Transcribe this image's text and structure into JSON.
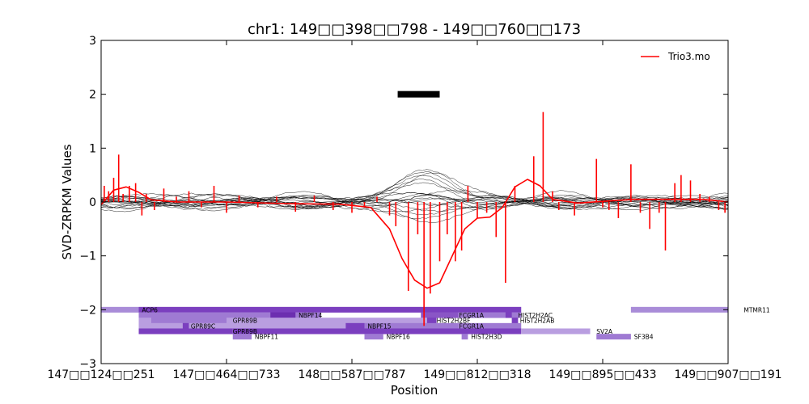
{
  "chart_data": {
    "type": "line",
    "title": "chr1: 149□□398□□798 - 149□□760□□173",
    "xlabel": "Position",
    "ylabel": "SVD-ZRPKM Values",
    "ylim": [
      -3,
      3
    ],
    "yticks": [
      3,
      2,
      1,
      0,
      -1,
      -2,
      -3
    ],
    "ytick_labels": [
      "3",
      "2",
      "1",
      "0",
      "−1",
      "−2",
      "−3"
    ],
    "xtick_labels": [
      "147□□124□□251",
      "147□□464□□733",
      "148□□587□□787",
      "149□□812□□318",
      "149□□895□□433",
      "149□□907□□191"
    ],
    "xtick_positions": [
      0,
      0.2,
      0.4,
      0.6,
      0.8,
      1.0
    ],
    "legend": {
      "entries": [
        "Trio3.mo"
      ],
      "placement": "top-right",
      "color": "#ff0000"
    },
    "colors": {
      "highlight": "#ff0000",
      "background_series": "#000000",
      "gene": "#7b3fbf"
    },
    "marker_bar": {
      "x": [
        0.473,
        0.54
      ],
      "y": 2.0
    },
    "highlight_series": {
      "name": "Trio3.mo",
      "smooth": [
        [
          0.0,
          -0.05
        ],
        [
          0.02,
          0.22
        ],
        [
          0.04,
          0.28
        ],
        [
          0.06,
          0.18
        ],
        [
          0.08,
          0.04
        ],
        [
          0.12,
          0.0
        ],
        [
          0.2,
          0.0
        ],
        [
          0.3,
          -0.03
        ],
        [
          0.38,
          -0.04
        ],
        [
          0.43,
          -0.1
        ],
        [
          0.46,
          -0.5
        ],
        [
          0.48,
          -1.05
        ],
        [
          0.5,
          -1.45
        ],
        [
          0.52,
          -1.6
        ],
        [
          0.54,
          -1.5
        ],
        [
          0.56,
          -1.0
        ],
        [
          0.58,
          -0.5
        ],
        [
          0.6,
          -0.3
        ],
        [
          0.62,
          -0.28
        ],
        [
          0.64,
          -0.1
        ],
        [
          0.66,
          0.28
        ],
        [
          0.68,
          0.42
        ],
        [
          0.7,
          0.3
        ],
        [
          0.72,
          0.05
        ],
        [
          0.76,
          -0.02
        ],
        [
          0.85,
          0.05
        ],
        [
          0.92,
          0.05
        ],
        [
          0.96,
          0.05
        ],
        [
          1.0,
          0.0
        ]
      ],
      "stems": [
        [
          0.005,
          0.3
        ],
        [
          0.012,
          0.2
        ],
        [
          0.02,
          0.45
        ],
        [
          0.028,
          0.88
        ],
        [
          0.035,
          0.15
        ],
        [
          0.045,
          0.3
        ],
        [
          0.055,
          0.35
        ],
        [
          0.065,
          -0.25
        ],
        [
          0.072,
          0.15
        ],
        [
          0.085,
          -0.15
        ],
        [
          0.1,
          0.25
        ],
        [
          0.12,
          0.1
        ],
        [
          0.14,
          0.2
        ],
        [
          0.16,
          -0.1
        ],
        [
          0.18,
          0.3
        ],
        [
          0.2,
          -0.2
        ],
        [
          0.22,
          0.12
        ],
        [
          0.25,
          -0.1
        ],
        [
          0.28,
          0.1
        ],
        [
          0.31,
          -0.18
        ],
        [
          0.34,
          0.12
        ],
        [
          0.37,
          -0.15
        ],
        [
          0.4,
          -0.2
        ],
        [
          0.42,
          -0.1
        ],
        [
          0.44,
          0.1
        ],
        [
          0.46,
          -0.25
        ],
        [
          0.47,
          -0.45
        ],
        [
          0.49,
          -1.65
        ],
        [
          0.505,
          -0.6
        ],
        [
          0.515,
          -2.3
        ],
        [
          0.525,
          -1.7
        ],
        [
          0.54,
          -1.1
        ],
        [
          0.552,
          -0.6
        ],
        [
          0.565,
          -1.1
        ],
        [
          0.575,
          -0.9
        ],
        [
          0.585,
          0.3
        ],
        [
          0.6,
          -0.3
        ],
        [
          0.615,
          -0.2
        ],
        [
          0.63,
          -0.65
        ],
        [
          0.645,
          -1.5
        ],
        [
          0.66,
          0.3
        ],
        [
          0.69,
          0.85
        ],
        [
          0.705,
          1.67
        ],
        [
          0.72,
          0.2
        ],
        [
          0.73,
          -0.15
        ],
        [
          0.755,
          -0.25
        ],
        [
          0.79,
          0.8
        ],
        [
          0.8,
          -0.1
        ],
        [
          0.81,
          -0.15
        ],
        [
          0.825,
          -0.3
        ],
        [
          0.845,
          0.7
        ],
        [
          0.86,
          -0.2
        ],
        [
          0.875,
          -0.5
        ],
        [
          0.89,
          -0.2
        ],
        [
          0.9,
          -0.9
        ],
        [
          0.915,
          0.35
        ],
        [
          0.925,
          0.5
        ],
        [
          0.94,
          0.4
        ],
        [
          0.955,
          0.15
        ],
        [
          0.97,
          0.1
        ],
        [
          0.985,
          -0.15
        ],
        [
          0.995,
          -0.2
        ]
      ]
    },
    "background_series_count": 20,
    "genes": [
      {
        "name": "ACP6",
        "x": [
          -0.05,
          0.06
        ],
        "y": -2.0,
        "lx": 0.065,
        "color": "#a98cd8"
      },
      {
        "name": "",
        "x": [
          0.06,
          0.67
        ],
        "y": -2.0,
        "lx": null,
        "color": "#7b3fbf"
      },
      {
        "name": "",
        "x": [
          0.06,
          0.35
        ],
        "y": -2.1,
        "lx": null,
        "color": "#9f7ad3"
      },
      {
        "name": "NBPF14",
        "x": [
          0.27,
          0.31
        ],
        "y": -2.1,
        "lx": 0.315,
        "color": "#6c2fb0"
      },
      {
        "name": "",
        "x": [
          0.51,
          0.57
        ],
        "y": -2.1,
        "lx": null,
        "color": "#8a55c6"
      },
      {
        "name": "FCGR1A",
        "x": [
          0.57,
          0.67
        ],
        "y": -2.1,
        "lx": 0.571,
        "color": "#9f7ad3"
      },
      {
        "name": "HIST2H2AC",
        "x": [
          0.645,
          0.655
        ],
        "y": -2.1,
        "lx": 0.665,
        "color": "#7b3fbf"
      },
      {
        "name": "",
        "x": [
          0.06,
          0.08
        ],
        "y": -2.2,
        "lx": null,
        "color": "#b99ee0"
      },
      {
        "name": "GPR89B",
        "x": [
          0.08,
          0.2
        ],
        "y": -2.2,
        "lx": 0.21,
        "color": "#9f7ad3"
      },
      {
        "name": "",
        "x": [
          0.2,
          0.52
        ],
        "y": -2.2,
        "lx": null,
        "color": "#b99ee0"
      },
      {
        "name": "HIST2H2BF",
        "x": [
          0.52,
          0.535
        ],
        "y": -2.2,
        "lx": 0.535,
        "color": "#7b3fbf"
      },
      {
        "name": "HIST2H2AB",
        "x": [
          0.655,
          0.665
        ],
        "y": -2.2,
        "lx": 0.668,
        "color": "#7b3fbf"
      },
      {
        "name": "",
        "x": [
          0.06,
          0.13
        ],
        "y": -2.3,
        "lx": null,
        "color": "#b99ee0"
      },
      {
        "name": "GPR89C",
        "x": [
          0.13,
          0.14
        ],
        "y": -2.3,
        "lx": 0.143,
        "color": "#7b3fbf"
      },
      {
        "name": "",
        "x": [
          0.14,
          0.39
        ],
        "y": -2.3,
        "lx": null,
        "color": "#b99ee0"
      },
      {
        "name": "NBPF15",
        "x": [
          0.39,
          0.42
        ],
        "y": -2.3,
        "lx": 0.425,
        "color": "#7b3fbf"
      },
      {
        "name": "",
        "x": [
          0.42,
          0.57
        ],
        "y": -2.3,
        "lx": null,
        "color": "#9f7ad3"
      },
      {
        "name": "FCGR1A",
        "x": [
          0.57,
          0.67
        ],
        "y": -2.3,
        "lx": 0.571,
        "color": "#9f7ad3"
      },
      {
        "name": "",
        "x": [
          0.06,
          0.2
        ],
        "y": -2.4,
        "lx": null,
        "color": "#7b3fbf"
      },
      {
        "name": "GPR89B",
        "x": [
          0.2,
          0.21
        ],
        "y": -2.4,
        "lx": 0.21,
        "color": "#7b3fbf"
      },
      {
        "name": "",
        "x": [
          0.21,
          0.67
        ],
        "y": -2.4,
        "lx": null,
        "color": "#7b3fbf"
      },
      {
        "name": "SV2A",
        "x": [
          0.67,
          0.78
        ],
        "y": -2.4,
        "lx": 0.79,
        "color": "#b99ee0"
      },
      {
        "name": "NBPF11",
        "x": [
          0.21,
          0.24
        ],
        "y": -2.5,
        "lx": 0.245,
        "color": "#9f7ad3"
      },
      {
        "name": "NBPF16",
        "x": [
          0.42,
          0.45
        ],
        "y": -2.5,
        "lx": 0.455,
        "color": "#9f7ad3"
      },
      {
        "name": "HIST2H3D",
        "x": [
          0.575,
          0.585
        ],
        "y": -2.5,
        "lx": 0.59,
        "color": "#9f7ad3"
      },
      {
        "name": "SF3B4",
        "x": [
          0.79,
          0.845
        ],
        "y": -2.5,
        "lx": 0.85,
        "color": "#9f7ad3"
      },
      {
        "name": "MTMR11",
        "x": [
          0.845,
          1.02
        ],
        "y": -2.0,
        "lx": 1.025,
        "color": "#a98cd8"
      }
    ]
  }
}
